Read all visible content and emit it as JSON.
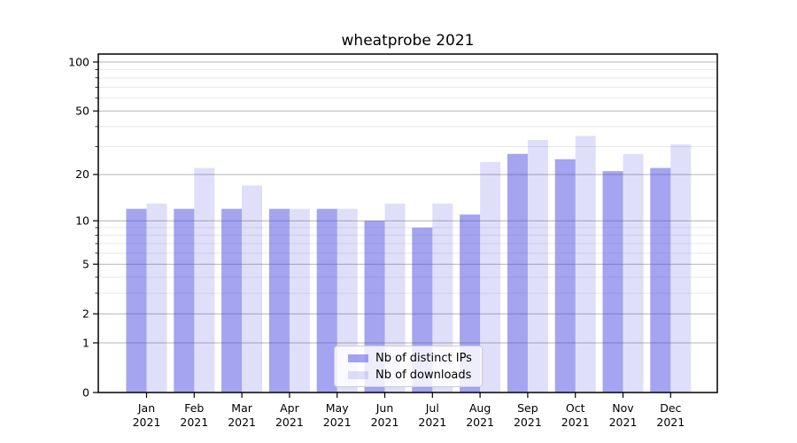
{
  "chart_data": {
    "type": "bar",
    "title": "wheatprobe 2021",
    "categories": [
      "Jan",
      "Feb",
      "Mar",
      "Apr",
      "May",
      "Jun",
      "Jul",
      "Aug",
      "Sep",
      "Oct",
      "Nov",
      "Dec"
    ],
    "year_label": "2021",
    "series": [
      {
        "name": "Nb of distinct IPs",
        "color": "rgba(64,64,224,0.48)",
        "values": [
          12,
          12,
          12,
          12,
          12,
          10,
          9,
          11,
          27,
          25,
          21,
          22
        ]
      },
      {
        "name": "Nb of downloads",
        "color": "rgba(64,64,224,0.17)",
        "values": [
          13,
          22,
          17,
          12,
          12,
          13,
          13,
          24,
          33,
          35,
          27,
          31
        ]
      }
    ],
    "xlabel": "",
    "ylabel": "",
    "yscale": "log1p",
    "ylim": [
      0,
      112
    ],
    "yticks": [
      0,
      1,
      2,
      5,
      10,
      20,
      50,
      100
    ],
    "minor_yticks": [
      3,
      4,
      6,
      7,
      8,
      9,
      30,
      40,
      60,
      70,
      80,
      90
    ],
    "grid": "both",
    "legend_position": "lower-center",
    "colors": {
      "major_grid": "#b3b3b3",
      "minor_grid": "#e8e8e8",
      "axis": "#000000",
      "background": "#ffffff"
    }
  }
}
